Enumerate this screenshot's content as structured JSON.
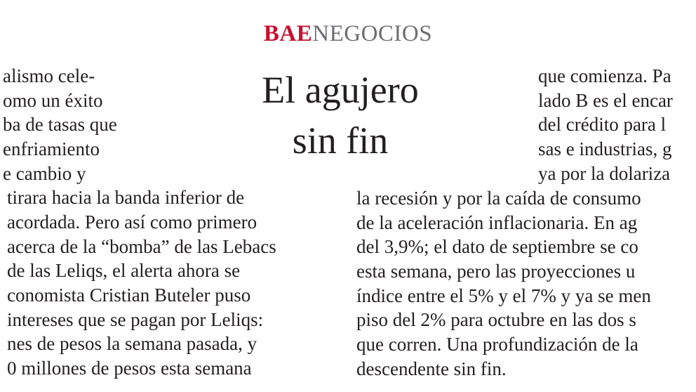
{
  "header": {
    "brand": "BAE",
    "section": "NEGOCIOS"
  },
  "title": [
    "El agujero",
    "sin fin"
  ],
  "left_column": [
    "alismo cele-",
    "omo un éxito",
    "ba de tasas que",
    "enfriamiento",
    "e cambio y",
    "tirara hacia la banda inferior de",
    "acordada. Pero así como primero",
    "acerca de la “bomba” de las Lebacs",
    "de las Leliqs, el alerta ahora se",
    "conomista Cristian Buteler puso",
    "intereses que se pagan por Leliqs:",
    "nes de pesos la semana pasada, y",
    "0 millones de pesos esta semana"
  ],
  "right_column_top": [
    "que comienza. Pa",
    "lado B es el encar",
    "del crédito para l",
    "sas e industrias, g",
    "ya por la dolariza"
  ],
  "right_column_bottom": [
    "la recesión y por la caída de consumo",
    "de la aceleración inflacionaria. En ag",
    "del 3,9%; el dato de septiembre se co",
    "esta semana, pero las proyecciones u",
    "índice entre el 5% y el 7% y ya se men",
    "piso del 2% para octubre en las dos s",
    "que corren. Una profundización de la",
    "descendente sin fin."
  ]
}
